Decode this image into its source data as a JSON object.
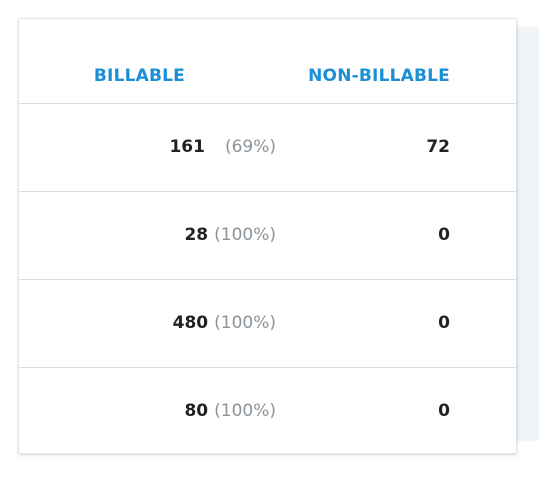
{
  "columns": {
    "billable": "BILLABLE",
    "non_billable": "NON-BILLABLE"
  },
  "rows": [
    {
      "billable": "161",
      "billable_pct": "(69%)",
      "non_billable": "72"
    },
    {
      "billable": "28",
      "billable_pct": "(100%)",
      "non_billable": "0"
    },
    {
      "billable": "480",
      "billable_pct": "(100%)",
      "non_billable": "0"
    },
    {
      "billable": "80",
      "billable_pct": "(100%)",
      "non_billable": "0"
    }
  ],
  "colors": {
    "header_accent": "#1a8fd6",
    "value_text": "#1f2326",
    "percent_text": "#8c9399",
    "divider": "#d7dde2"
  }
}
